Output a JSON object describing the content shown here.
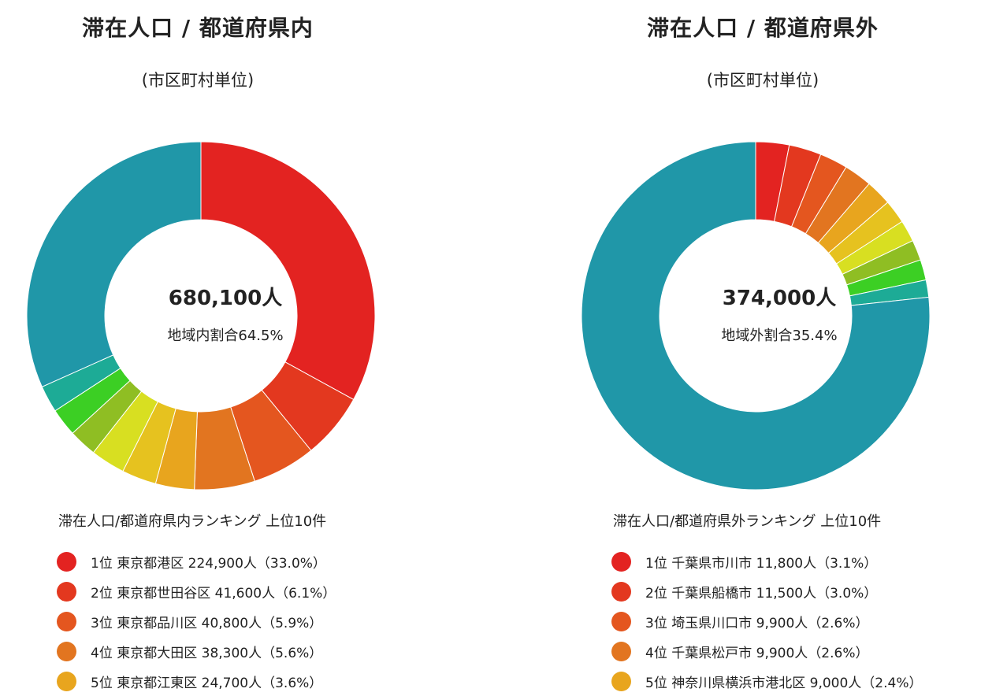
{
  "colors": {
    "slices": [
      "#e32321",
      "#e3381f",
      "#e4561f",
      "#e27520",
      "#e8a51e",
      "#e6c21f",
      "#d8df21",
      "#8fbe23",
      "#3ccf24",
      "#1dab96",
      "#2097a8"
    ],
    "other": "#2097a8"
  },
  "chart_data": [
    {
      "type": "pie",
      "title": "滞在人口 / 都道府県内",
      "subtitle": "(市区町村単位)",
      "center_value": "680,100人",
      "center_label": "地域内割合64.5%",
      "ranking_title": "滞在人口/都道府県内ランキング 上位10件",
      "slices_pct": [
        33.0,
        6.1,
        5.9,
        5.6,
        3.6,
        3.2,
        3.2,
        2.6,
        2.6,
        2.5,
        31.7
      ],
      "ranking": [
        {
          "label": "1位 東京都港区 224,900人（33.0%）"
        },
        {
          "label": "2位 東京都世田谷区 41,600人（6.1%）"
        },
        {
          "label": "3位 東京都品川区 40,800人（5.9%）"
        },
        {
          "label": "4位 東京都大田区 38,300人（5.6%）"
        },
        {
          "label": "5位 東京都江東区 24,700人（3.6%）"
        }
      ]
    },
    {
      "type": "pie",
      "title": "滞在人口 / 都道府県外",
      "subtitle": "(市区町村単位)",
      "center_value": "374,000人",
      "center_label": "地域外割合35.4%",
      "ranking_title": "滞在人口/都道府県外ランキング 上位10件",
      "slices_pct": [
        3.1,
        3.0,
        2.6,
        2.6,
        2.4,
        2.2,
        2.0,
        1.9,
        1.9,
        1.6,
        76.7
      ],
      "ranking": [
        {
          "label": "1位 千葉県市川市 11,800人（3.1%）"
        },
        {
          "label": "2位 千葉県船橋市 11,500人（3.0%）"
        },
        {
          "label": "3位 埼玉県川口市 9,900人（2.6%）"
        },
        {
          "label": "4位 千葉県松戸市 9,900人（2.6%）"
        },
        {
          "label": "5位 神奈川県横浜市港北区 9,000人（2.4%）"
        }
      ]
    }
  ]
}
